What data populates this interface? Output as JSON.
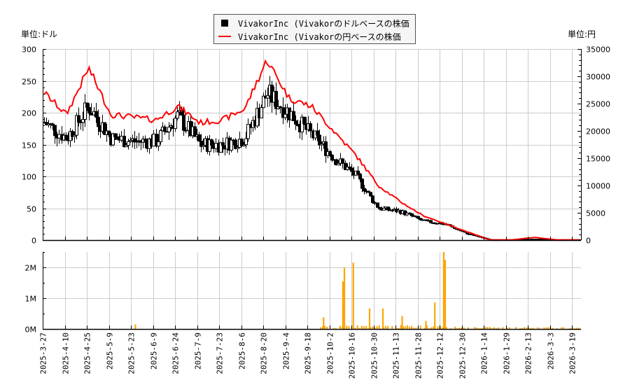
{
  "legend": {
    "items": [
      {
        "label": "VivakorInc (Vivakorのドルベースの株価",
        "color": "#000000",
        "marker": "square"
      },
      {
        "label": "VivakorInc (Vivakorの円ベースの株価",
        "color": "#ff0000",
        "marker": "line"
      }
    ]
  },
  "axes": {
    "left_unit": "単位:ドル",
    "right_unit": "単位:円",
    "left_ticks": [
      "0",
      "50",
      "100",
      "150",
      "200",
      "250",
      "300"
    ],
    "right_ticks": [
      "0",
      "5000",
      "10000",
      "15000",
      "20000",
      "25000",
      "30000",
      "35000"
    ],
    "volume_ticks": [
      "0M",
      "1M",
      "2M"
    ],
    "x_ticks": [
      "2025-3-27",
      "2025-4-10",
      "2025-4-25",
      "2025-5-9",
      "2025-5-23",
      "2025-6-9",
      "2025-6-24",
      "2025-7-9",
      "2025-7-23",
      "2025-8-6",
      "2025-8-20",
      "2025-9-4",
      "2025-9-18",
      "2025-10-2",
      "2025-10-16",
      "2025-10-30",
      "2025-11-13",
      "2025-11-28",
      "2025-12-12",
      "2025-12-30",
      "2026-1-14",
      "2026-1-29",
      "2026-2-13",
      "2026-3-3",
      "2026-3-19"
    ]
  },
  "colors": {
    "candle": "#000000",
    "yen_line": "#ff0000",
    "volume": "#ffa500",
    "grid": "#cccccc"
  },
  "chart_data": [
    {
      "type": "line",
      "title": "VivakorInc (Vivakor) price (USD candlestick & JPY line)",
      "xlabel": "",
      "ylabel": "単位:ドル",
      "y2label": "単位:円",
      "ylim": [
        0,
        300
      ],
      "y2lim": [
        0,
        35000
      ],
      "grid": true,
      "legend_position": "top-center",
      "x": [
        "2025-3-27",
        "2025-4-10",
        "2025-4-25",
        "2025-5-9",
        "2025-5-23",
        "2025-6-9",
        "2025-6-24",
        "2025-7-9",
        "2025-7-23",
        "2025-8-6",
        "2025-8-20",
        "2025-9-4",
        "2025-9-18",
        "2025-10-2",
        "2025-10-16",
        "2025-10-30",
        "2025-11-13",
        "2025-11-28",
        "2025-12-12",
        "2025-12-30",
        "2026-1-14",
        "2026-1-29",
        "2026-2-13",
        "2026-3-3",
        "2026-3-19"
      ],
      "series": [
        {
          "name": "VivakorInc (Vivakorのドルベースの株価",
          "axis": "left",
          "style": "candlestick",
          "values": [
            185,
            160,
            210,
            160,
            155,
            155,
            195,
            150,
            150,
            160,
            230,
            200,
            165,
            130,
            100,
            50,
            45,
            30,
            25,
            10,
            0.5,
            0.5,
            1.5,
            0.5,
            0.5
          ]
        },
        {
          "name": "VivakorInc (Vivakorの円ベースの株価",
          "axis": "right",
          "style": "line",
          "values": [
            27000,
            23000,
            31500,
            23000,
            22500,
            22000,
            24500,
            21500,
            22000,
            24000,
            33000,
            26000,
            24500,
            20000,
            15500,
            10000,
            7000,
            4500,
            3000,
            1500,
            50,
            50,
            500,
            50,
            50
          ]
        }
      ]
    },
    {
      "type": "bar",
      "title": "Volume",
      "ylabel": "",
      "ylim": [
        0,
        2500000
      ],
      "grid": true,
      "categories": [
        "2025-5-28",
        "2025-10-2",
        "2025-10-15",
        "2025-10-16",
        "2025-10-22",
        "2025-11-2",
        "2025-11-11",
        "2025-11-24",
        "2025-12-10",
        "2025-12-16",
        "2025-12-22",
        "2025-12-23"
      ],
      "values": [
        150000,
        380000,
        1550000,
        2000000,
        2150000,
        670000,
        670000,
        420000,
        260000,
        860000,
        2500000,
        2250000
      ]
    }
  ]
}
